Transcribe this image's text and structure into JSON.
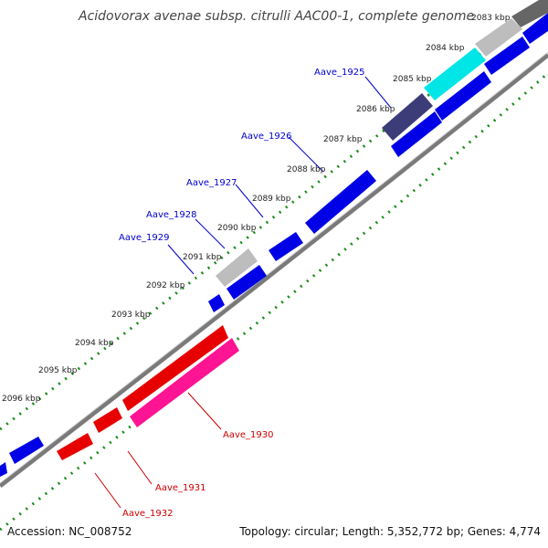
{
  "title": "Acidovorax avenae subsp. citrulli AAC00-1, complete genome",
  "footer": {
    "accession": "Accession: NC_008752",
    "summary": "Topology: circular; Length: 5,352,772 bp; Genes: 4,774"
  },
  "ticks": [
    "2083 kbp",
    "2084 kbp",
    "2085 kbp",
    "2086 kbp",
    "2087 kbp",
    "2088 kbp",
    "2089 kbp",
    "2090 kbp",
    "2091 kbp",
    "2092 kbp",
    "2093 kbp",
    "2094 kbp",
    "2095 kbp",
    "2096 kbp"
  ],
  "genes": {
    "aave_1925": "Aave_1925",
    "aave_1926": "Aave_1926",
    "aave_1927": "Aave_1927",
    "aave_1928": "Aave_1928",
    "aave_1929": "Aave_1929",
    "aave_1930": "Aave_1930",
    "aave_1931": "Aave_1931",
    "aave_1932": "Aave_1932"
  },
  "colors": {
    "forward_cds": "#0000e6",
    "reverse_cds": "#e60000",
    "highlight_pink": "#ff1493",
    "highlight_cyan": "#00e5e5",
    "highlight_navy": "#3c3c78",
    "pseudo_grey": "#b4b4b4",
    "backbone": "#7f7f7f",
    "gc_dots": "#1a8c1a"
  }
}
